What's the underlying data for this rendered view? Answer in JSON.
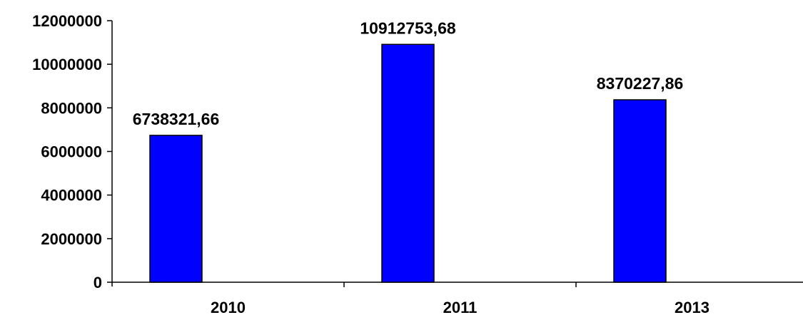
{
  "chart_data": {
    "type": "bar",
    "categories": [
      "2010",
      "2011",
      "2013"
    ],
    "values": [
      6738321.66,
      10912753.68,
      8370227.86
    ],
    "data_labels": [
      "6738321,66",
      "10912753,68",
      "8370227,86"
    ],
    "y_ticks": [
      "0",
      "2000000",
      "4000000",
      "6000000",
      "8000000",
      "10000000",
      "12000000"
    ],
    "ylim": [
      0,
      12000000
    ],
    "grid": false,
    "legend": "none",
    "bar_color": "#0000FF",
    "bar_edge_color": "#000000"
  }
}
